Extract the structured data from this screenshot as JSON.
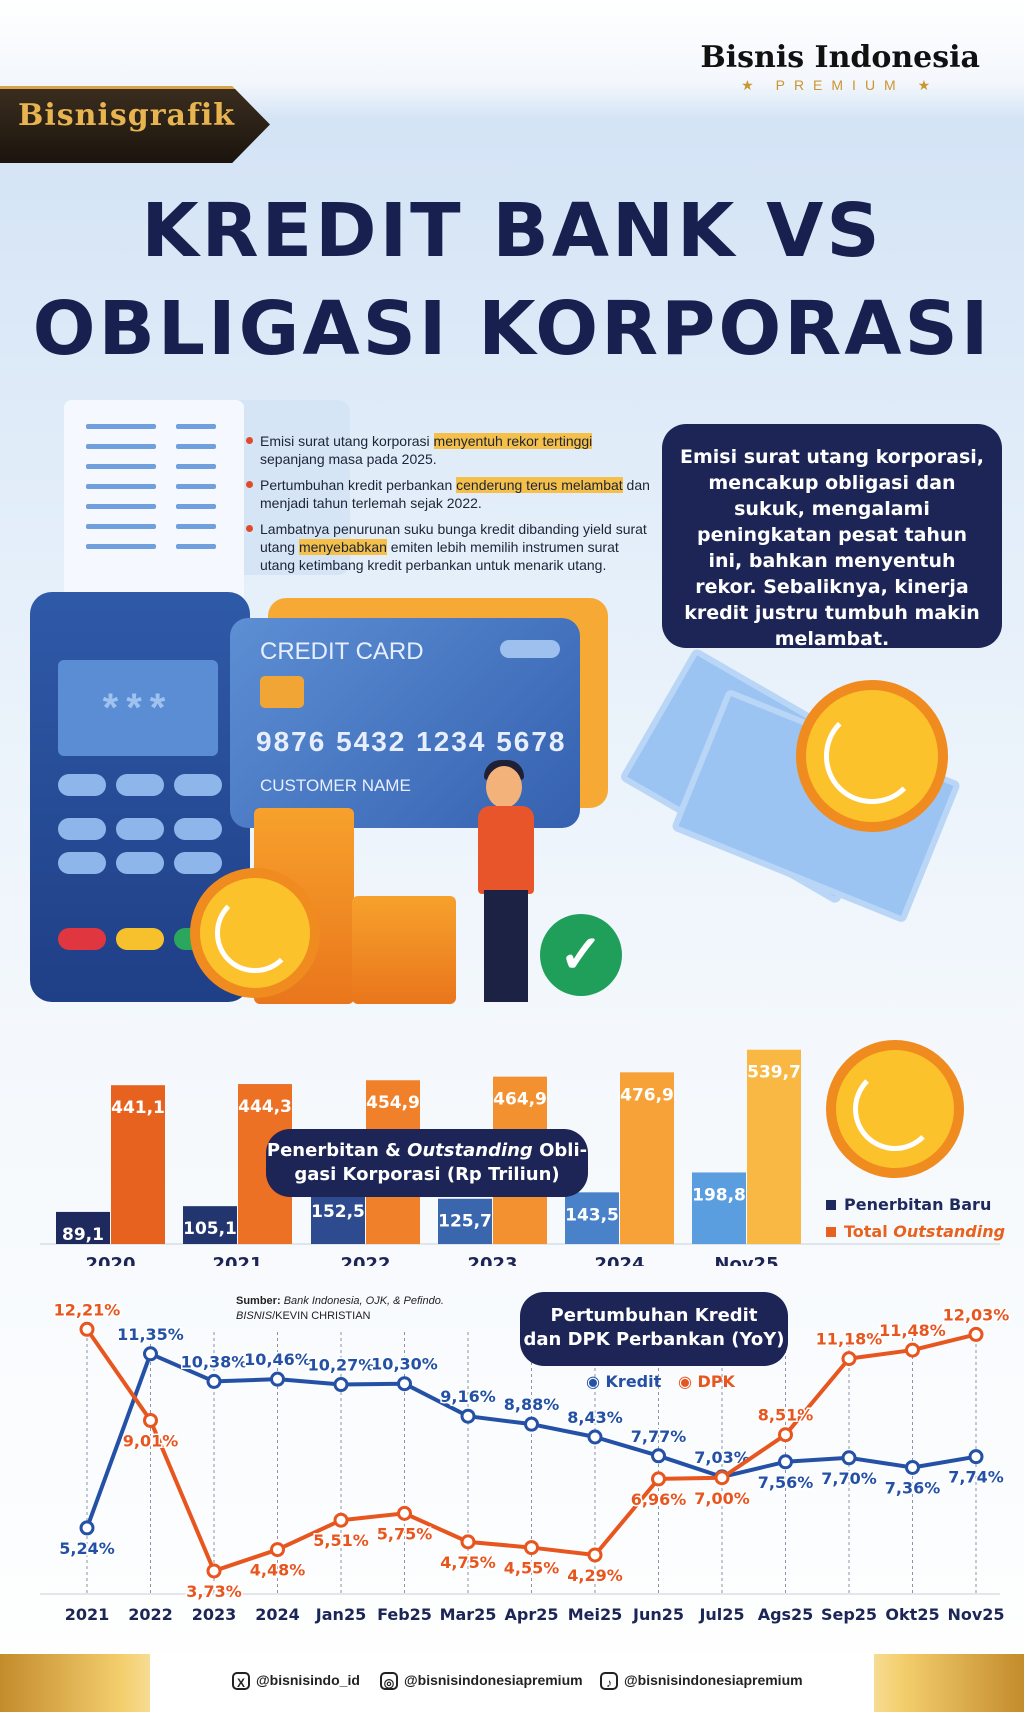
{
  "header": {
    "tag": "Bisnisgrafik",
    "brand_name": "Bisnis Indonesia",
    "brand_sub": "★ PREMIUM ★",
    "title_line1": "KREDIT BANK VS",
    "title_line2": "OBLIGASI KORPORASI"
  },
  "bullets": [
    {
      "pre": "Emisi surat utang korporasi ",
      "hl": "menyentuh rekor tertinggi",
      "post": " sepanjang masa pada 2025."
    },
    {
      "pre": "Pertumbuhan kredit perbankan ",
      "hl": "cenderung terus melambat",
      "post": " dan menjadi tahun terlemah sejak 2022."
    },
    {
      "pre": "Lambatnya penurunan suku bunga kredit dibanding yield surat utang ",
      "hl": "menyebabkan",
      "post": " emiten lebih memilih instrumen surat utang ketimbang kredit perbankan untuk menarik utang."
    }
  ],
  "infobox": "Emisi surat utang korporasi, mencakup obligasi dan sukuk, mengalami peningkatan pesat tahun ini, bahkan menyentuh rekor. Sebaliknya, kinerja kredit justru tumbuh makin melambat.",
  "illustration": {
    "card_title": "CREDIT CARD",
    "card_number": "9876  5432  1234  5678",
    "card_name": "CUSTOMER NAME",
    "screen_text": "***"
  },
  "chart_data": [
    {
      "type": "bar",
      "title": "Penerbitan & Outstanding Obligasi Korporasi (Rp Triliun)",
      "categories": [
        "2020",
        "2021",
        "2022",
        "2023",
        "2024",
        "Nov25"
      ],
      "series": [
        {
          "name": "Penerbitan Baru",
          "values": [
            89.1,
            105.1,
            152.5,
            125.7,
            143.5,
            198.8
          ],
          "labels": [
            "89,1",
            "105,1",
            "152,5",
            "125,7",
            "143,5",
            "198,8"
          ],
          "colors": [
            "#1e2a5e",
            "#22356f",
            "#2d4b8e",
            "#3a66ad",
            "#4a82c9",
            "#5b9ee0"
          ]
        },
        {
          "name": "Total Outstanding",
          "values": [
            441.1,
            444.3,
            454.9,
            464.9,
            476.9,
            539.7
          ],
          "labels": [
            "441,1",
            "444,3",
            "454,9",
            "464,9",
            "476,9",
            "539,7"
          ],
          "colors": [
            "#e8621f",
            "#ec7124",
            "#f0802a",
            "#f39130",
            "#f6a238",
            "#f9b843"
          ]
        }
      ],
      "legend": "bottom-right"
    },
    {
      "type": "line",
      "title": "Pertumbuhan Kredit dan DPK Perbankan (YoY)",
      "categories": [
        "2021",
        "2022",
        "2023",
        "2024",
        "Jan25",
        "Feb25",
        "Mar25",
        "Apr25",
        "Mei25",
        "Jun25",
        "Jul25",
        "Ags25",
        "Sep25",
        "Okt25",
        "Nov25"
      ],
      "series": [
        {
          "name": "Kredit",
          "color": "#2451a6",
          "values": [
            5.24,
            11.35,
            10.38,
            10.46,
            10.27,
            10.3,
            9.16,
            8.88,
            8.43,
            7.77,
            7.03,
            7.56,
            7.7,
            7.36,
            7.74
          ],
          "labels": [
            "5,24%",
            "11,35%",
            "10,38%",
            "10,46%",
            "10,27%",
            "10,30%",
            "9,16%",
            "8,88%",
            "8,43%",
            "7,77%",
            "7,03%",
            "7,56%",
            "7,70%",
            "7,36%",
            "7,74%"
          ]
        },
        {
          "name": "DPK",
          "color": "#e8561f",
          "values": [
            12.21,
            9.01,
            3.73,
            4.48,
            5.51,
            5.75,
            4.75,
            4.55,
            4.29,
            6.96,
            7.0,
            8.51,
            11.18,
            11.48,
            12.03
          ],
          "labels": [
            "12,21%",
            "9,01%",
            "3,73%",
            "4,48%",
            "5,51%",
            "5,75%",
            "4,75%",
            "4,55%",
            "4,29%",
            "6,96%",
            "7,00%",
            "8,51%",
            "11,18%",
            "11,48%",
            "12,03%"
          ]
        }
      ],
      "legend": "top-right"
    }
  ],
  "bar_chart_title": {
    "line1_a": "Penerbitan & ",
    "line1_b": "Outstanding",
    "line1_c": " Obli-",
    "line2": "gasi Korporasi (Rp Triliun)"
  },
  "bar_legend": {
    "s1": "Penerbitan Baru",
    "s2_a": "Total ",
    "s2_b": "Outstanding"
  },
  "line_chart_title": {
    "line1": "Pertumbuhan Kredit",
    "line2": "dan DPK Perbankan (YoY)"
  },
  "line_legend": {
    "s1": "Kredit",
    "s2": "DPK"
  },
  "source": {
    "label": "Sumber:",
    "text": "Bank Indonesia, OJK, & Pefindo.",
    "credit_a": "BISNIS",
    "credit_b": "/KEVIN CHRISTIAN"
  },
  "footer": {
    "x": "@bisnisindo_id",
    "instagram": "@bisnisindonesiapremium",
    "tiktok": "@bisnisindonesiapremium"
  },
  "colors": {
    "navy": "#1c2556",
    "orange": "#e8561f",
    "blue": "#2451a6",
    "gold": "#d7a548"
  }
}
